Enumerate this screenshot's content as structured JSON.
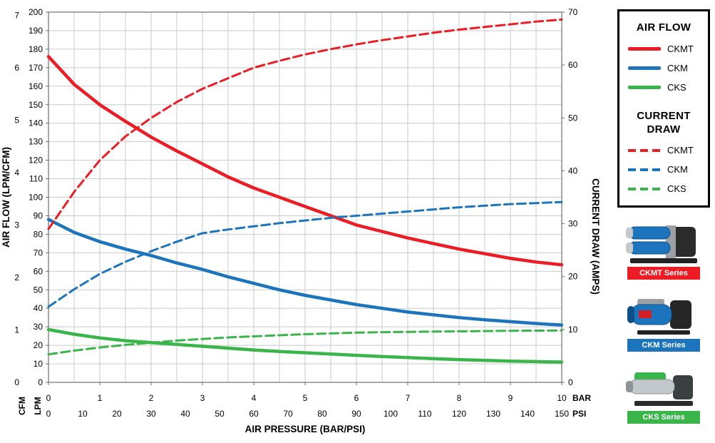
{
  "chart_data": {
    "type": "line",
    "title": "",
    "xlabel": "AIR PRESSURE (BAR/PSI)",
    "ylabel_left": "AIR FLOW (LPM/CFM)",
    "ylabel_right": "CURRENT DRAW (AMPS)",
    "x_axis_bar": {
      "label": "BAR",
      "min": 0,
      "max": 10,
      "step": 1
    },
    "x_axis_psi": {
      "label": "PSI",
      "min": 0,
      "max": 150,
      "step": 10
    },
    "y_axis_lpm": {
      "label": "LPM",
      "min": 0,
      "max": 200,
      "step": 10
    },
    "y_axis_cfm": {
      "label": "CFM",
      "min": 0,
      "max": 7,
      "step": 1,
      "lpm_per_cfm": 28.3168
    },
    "y_axis_amps": {
      "min": 0,
      "max": 70,
      "step": 10
    },
    "grid": {
      "x_step_bar": 0.5,
      "y_step_lpm": 10,
      "on": true
    },
    "legend_position": "outside-right",
    "x_bar": [
      0,
      0.5,
      1,
      1.5,
      2,
      2.5,
      3,
      3.5,
      4,
      4.5,
      5,
      5.5,
      6,
      6.5,
      7,
      7.5,
      8,
      8.5,
      9,
      9.5,
      10
    ],
    "series": [
      {
        "name": "CKMT",
        "quantity": "air_flow",
        "unit": "LPM",
        "axis": "left",
        "color": "#ed1c24",
        "dashed": false,
        "values": [
          176,
          161,
          150,
          141,
          132.5,
          125,
          118,
          111,
          105,
          100,
          95,
          90,
          85,
          81.5,
          78,
          75,
          72,
          69.5,
          67,
          65,
          63.5
        ]
      },
      {
        "name": "CKM",
        "quantity": "air_flow",
        "unit": "LPM",
        "axis": "left",
        "color": "#1c75bc",
        "dashed": false,
        "values": [
          88,
          81,
          76,
          72,
          68.5,
          64.5,
          61,
          57,
          53.5,
          50,
          47,
          44.5,
          42,
          40,
          38,
          36.5,
          35,
          33.8,
          32.8,
          31.8,
          31
        ]
      },
      {
        "name": "CKS",
        "quantity": "air_flow",
        "unit": "LPM",
        "axis": "left",
        "color": "#3ab54a",
        "dashed": false,
        "values": [
          28.5,
          26,
          24,
          22.5,
          21.5,
          20.5,
          19.5,
          18.5,
          17.5,
          16.7,
          16,
          15.3,
          14.6,
          14,
          13.4,
          12.8,
          12.3,
          11.9,
          11.5,
          11.2,
          11
        ]
      },
      {
        "name": "CKMT",
        "quantity": "current_draw",
        "unit": "AMPS",
        "axis": "right",
        "color": "#ed1c24",
        "dashed": true,
        "values": [
          29,
          36,
          42,
          46.5,
          50,
          53,
          55.5,
          57.5,
          59.5,
          60.8,
          62,
          63,
          63.9,
          64.7,
          65.4,
          66.1,
          66.7,
          67.2,
          67.7,
          68.2,
          68.6
        ]
      },
      {
        "name": "CKM",
        "quantity": "current_draw",
        "unit": "AMPS",
        "axis": "right",
        "color": "#1c75bc",
        "dashed": true,
        "values": [
          14.3,
          17.6,
          20.5,
          22.8,
          24.8,
          26.6,
          28.2,
          28.9,
          29.5,
          30.1,
          30.6,
          31.1,
          31.5,
          31.9,
          32.3,
          32.7,
          33.1,
          33.4,
          33.7,
          33.9,
          34.1
        ]
      },
      {
        "name": "CKS",
        "quantity": "current_draw",
        "unit": "AMPS",
        "axis": "right",
        "color": "#3ab54a",
        "dashed": true,
        "values": [
          5.3,
          6,
          6.6,
          7.1,
          7.5,
          7.9,
          8.2,
          8.5,
          8.7,
          8.9,
          9.1,
          9.25,
          9.4,
          9.5,
          9.55,
          9.6,
          9.65,
          9.7,
          9.75,
          9.78,
          9.8
        ]
      }
    ]
  },
  "legend": {
    "air_flow_title": "AIR FLOW",
    "air_flow_items": [
      {
        "label": "CKMT",
        "color": "#ed1c24"
      },
      {
        "label": "CKM",
        "color": "#1c75bc"
      },
      {
        "label": "CKS",
        "color": "#3ab54a"
      }
    ],
    "current_draw_title": "CURRENT DRAW",
    "current_draw_items": [
      {
        "label": "CKMT",
        "color": "#ed1c24"
      },
      {
        "label": "CKM",
        "color": "#1c75bc"
      },
      {
        "label": "CKS",
        "color": "#3ab54a"
      }
    ]
  },
  "products": [
    {
      "label": "CKMT Series",
      "color": "#ed1c24"
    },
    {
      "label": "CKM Series",
      "color": "#1c75bc"
    },
    {
      "label": "CKS Series",
      "color": "#3ab54a"
    }
  ]
}
